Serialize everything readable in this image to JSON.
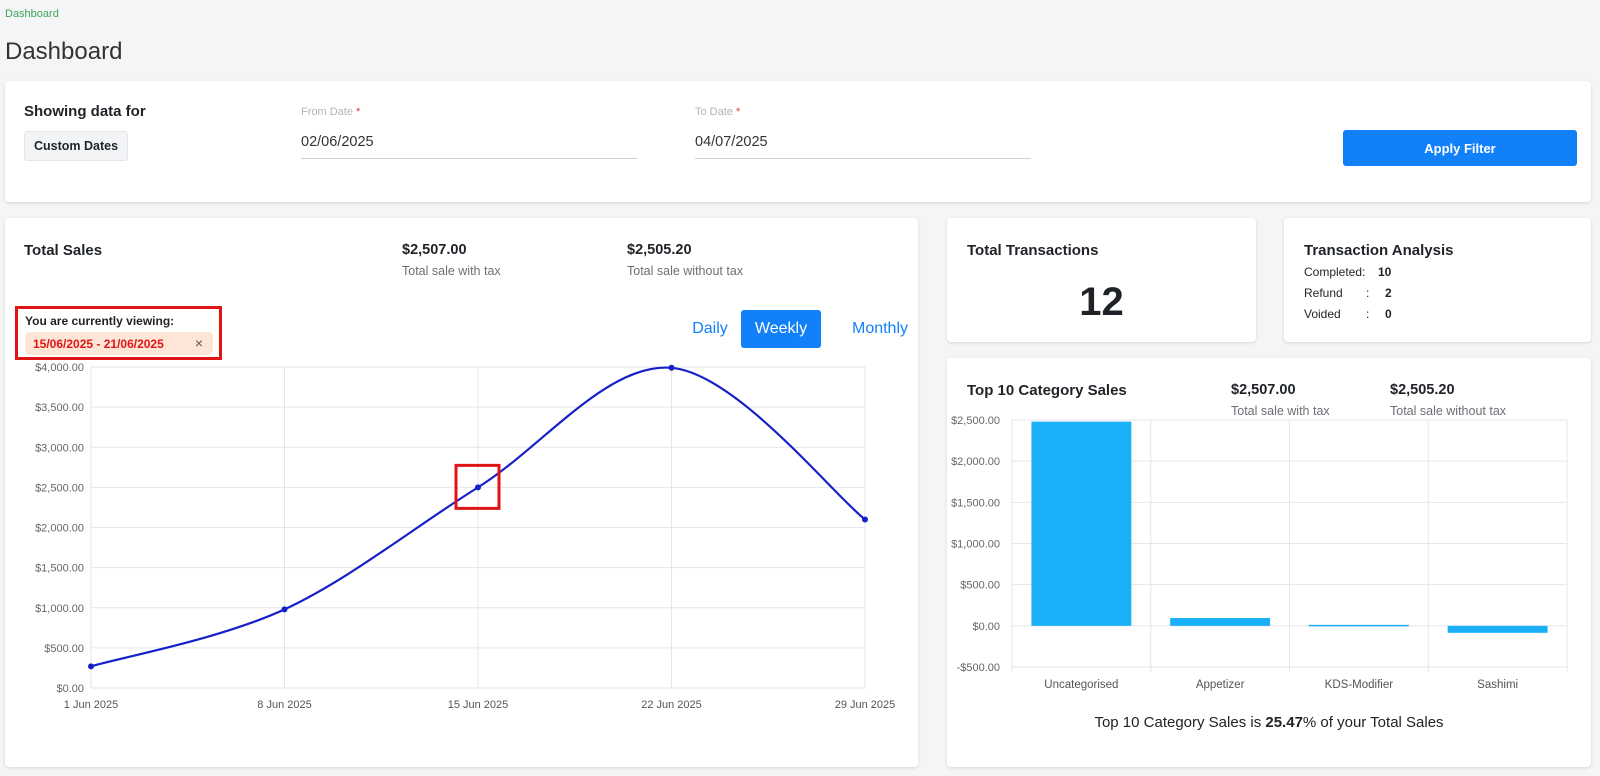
{
  "breadcrumb": "Dashboard",
  "page_title": "Dashboard",
  "filter": {
    "title": "Showing data for",
    "mode": "Custom Dates",
    "from_label": "From Date",
    "from_value": "02/06/2025",
    "to_label": "To Date",
    "to_value": "04/07/2025",
    "required_mark": "*",
    "apply_label": "Apply Filter"
  },
  "total_sales": {
    "title": "Total Sales",
    "with_tax_value": "$2,507.00",
    "with_tax_label": "Total sale with tax",
    "without_tax_value": "$2,505.20",
    "without_tax_label": "Total sale without tax",
    "viewing_label": "You are currently viewing:",
    "viewing_range": "15/06/2025 - 21/06/2025",
    "chip_close": "×",
    "tabs": [
      {
        "label": "Daily",
        "active": false
      },
      {
        "label": "Weekly",
        "active": true
      },
      {
        "label": "Monthly",
        "active": false
      }
    ]
  },
  "transactions": {
    "title": "Total Transactions",
    "count": "12"
  },
  "analysis": {
    "title": "Transaction Analysis",
    "rows": [
      {
        "label": "Completed",
        "sep": ":",
        "value": "10"
      },
      {
        "label": "Refund",
        "sep": ":",
        "value": "2"
      },
      {
        "label": "Voided",
        "sep": ":",
        "value": "0"
      }
    ]
  },
  "category": {
    "title": "Top 10 Category Sales",
    "with_tax_value": "$2,507.00",
    "with_tax_label": "Total sale with tax",
    "without_tax_value": "$2,505.20",
    "without_tax_label": "Total sale without tax",
    "footer_prefix": "Top 10 Category Sales is ",
    "footer_percent": "25.47",
    "footer_suffix": "% of your Total Sales"
  },
  "colors": {
    "line": "#1620c8",
    "bar": "#1ab0f7",
    "highlight": "#e01414",
    "accent": "#1281f9"
  },
  "chart_data": [
    {
      "type": "line",
      "x": [
        "1 Jun 2025",
        "8 Jun 2025",
        "15 Jun 2025",
        "22 Jun 2025",
        "29 Jun 2025"
      ],
      "values": [
        270,
        980,
        2500,
        3990,
        2100
      ],
      "ylim": [
        0,
        4000
      ],
      "yticks": [
        0,
        500,
        1000,
        1500,
        2000,
        2500,
        3000,
        3500,
        4000
      ],
      "ytick_labels": [
        "$0.00",
        "$500.00",
        "$1,000.00",
        "$1,500.00",
        "$2,000.00",
        "$2,500.00",
        "$3,000.00",
        "$3,500.00",
        "$4,000.00"
      ],
      "highlighted_point": "15 Jun 2025",
      "grid": true
    },
    {
      "type": "bar",
      "categories": [
        "Uncategorised",
        "Appetizer",
        "KDS-Modifier",
        "Sashimi"
      ],
      "values": [
        2480,
        95,
        12,
        -85
      ],
      "ylim": [
        -500,
        2500
      ],
      "yticks": [
        -500,
        0,
        500,
        1000,
        1500,
        2000,
        2500
      ],
      "ytick_labels": [
        "-$500.00",
        "$0.00",
        "$500.00",
        "$1,000.00",
        "$1,500.00",
        "$2,000.00",
        "$2,500.00"
      ],
      "grid": true
    }
  ]
}
